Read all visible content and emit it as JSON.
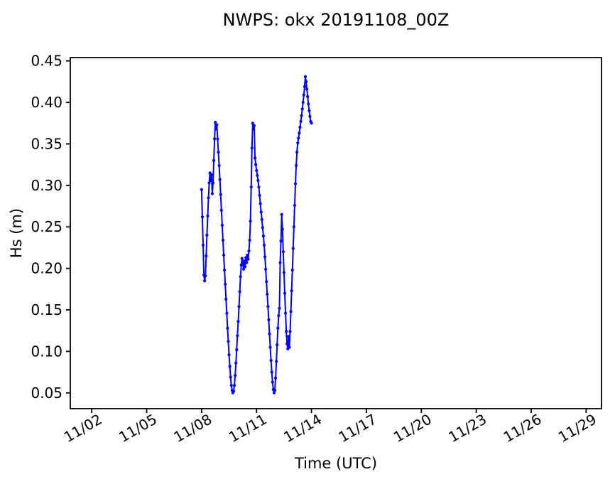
{
  "figure": {
    "background": "#ffffff",
    "text_color": "#000000",
    "spine_color": "#000000"
  },
  "chart_data": {
    "type": "line",
    "title": "NWPS: okx 20191108_00Z",
    "xlabel": "Time (UTC)",
    "ylabel": "Hs (m)",
    "grid": false,
    "legend": null,
    "line_color": "#0000ff",
    "marker": "dot",
    "x_tick_labels": [
      "11/02",
      "11/05",
      "11/08",
      "11/11",
      "11/14",
      "11/17",
      "11/20",
      "11/23",
      "11/26",
      "11/29"
    ],
    "x_tick_days_from_start": [
      -6,
      -3,
      0,
      3,
      6,
      9,
      12,
      15,
      18,
      21
    ],
    "xlim_days_from_start": [
      -7.17,
      21.84
    ],
    "y_ticks": [
      0.05,
      0.1,
      0.15,
      0.2,
      0.25,
      0.3,
      0.35,
      0.4,
      0.45
    ],
    "ylim": [
      0.031,
      0.454
    ],
    "series": [
      {
        "name": "Hs",
        "start_x_tick": "11/08",
        "x_step_hours": 1,
        "values": [
          0.295,
          0.262,
          0.228,
          0.192,
          0.185,
          0.191,
          0.215,
          0.24,
          0.263,
          0.285,
          0.303,
          0.315,
          0.306,
          0.313,
          0.29,
          0.303,
          0.33,
          0.356,
          0.376,
          0.368,
          0.373,
          0.356,
          0.34,
          0.324,
          0.307,
          0.289,
          0.27,
          0.252,
          0.234,
          0.216,
          0.198,
          0.181,
          0.163,
          0.146,
          0.128,
          0.112,
          0.096,
          0.082,
          0.069,
          0.059,
          0.053,
          0.05,
          0.052,
          0.059,
          0.071,
          0.086,
          0.102,
          0.119,
          0.136,
          0.154,
          0.172,
          0.19,
          0.204,
          0.212,
          0.205,
          0.199,
          0.209,
          0.202,
          0.213,
          0.207,
          0.216,
          0.211,
          0.221,
          0.234,
          0.257,
          0.298,
          0.345,
          0.375,
          0.368,
          0.372,
          0.333,
          0.325,
          0.318,
          0.312,
          0.306,
          0.298,
          0.288,
          0.278,
          0.268,
          0.259,
          0.249,
          0.239,
          0.228,
          0.214,
          0.199,
          0.184,
          0.169,
          0.154,
          0.138,
          0.121,
          0.105,
          0.089,
          0.075,
          0.063,
          0.054,
          0.05,
          0.053,
          0.068,
          0.088,
          0.108,
          0.128,
          0.143,
          0.152,
          0.207,
          0.233,
          0.265,
          0.247,
          0.22,
          0.195,
          0.17,
          0.146,
          0.124,
          0.109,
          0.103,
          0.118,
          0.105,
          0.124,
          0.148,
          0.173,
          0.198,
          0.224,
          0.25,
          0.276,
          0.302,
          0.324,
          0.34,
          0.351,
          0.357,
          0.363,
          0.37,
          0.377,
          0.384,
          0.392,
          0.4,
          0.409,
          0.419,
          0.431,
          0.425,
          0.416,
          0.407,
          0.398,
          0.39,
          0.383,
          0.377,
          0.375
        ]
      }
    ]
  }
}
